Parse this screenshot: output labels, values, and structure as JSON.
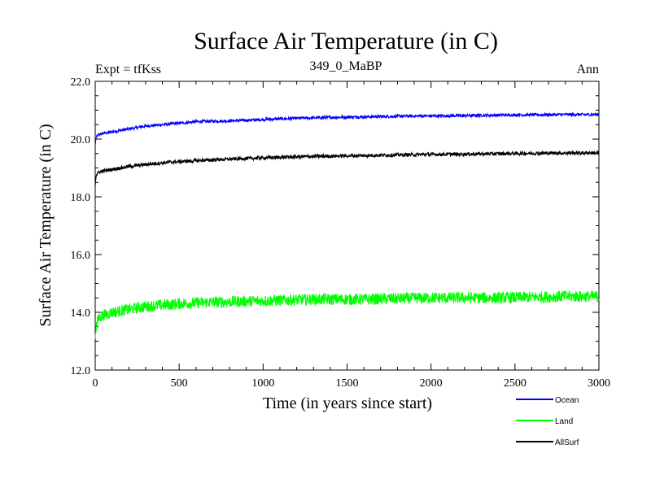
{
  "chart_data": {
    "type": "line",
    "title": "Surface Air Temperature (in C)",
    "subtitle_left": "Expt = tfKss",
    "subtitle_center": "349_0_MaBP",
    "subtitle_right": "Ann",
    "xlabel": "Time (in years since start)",
    "ylabel": "Surface Air Temperature (in C)",
    "xlim": [
      0,
      3000
    ],
    "ylim": [
      12.0,
      22.0
    ],
    "x_ticks": [
      0,
      500,
      1000,
      1500,
      2000,
      2500,
      3000
    ],
    "x_tick_labels": [
      "0",
      "500",
      "1000",
      "1500",
      "2000",
      "2500",
      "3000"
    ],
    "y_ticks": [
      12.0,
      14.0,
      16.0,
      18.0,
      20.0,
      22.0
    ],
    "y_tick_labels": [
      "12.0",
      "14.0",
      "16.0",
      "18.0",
      "20.0",
      "22.0"
    ],
    "legend_position": "bottom-right",
    "series": [
      {
        "name": "Ocean",
        "color": "#0000ff",
        "noise": 0.05,
        "x": [
          0,
          5,
          20,
          50,
          100,
          200,
          300,
          400,
          500,
          600,
          700,
          800,
          900,
          1000,
          1200,
          1400,
          1600,
          1800,
          2000,
          2200,
          2400,
          2600,
          2800,
          3000
        ],
        "values": [
          19.8,
          20.05,
          20.15,
          20.2,
          20.25,
          20.35,
          20.45,
          20.5,
          20.55,
          20.6,
          20.62,
          20.63,
          20.65,
          20.68,
          20.72,
          20.75,
          20.77,
          20.79,
          20.8,
          20.81,
          20.83,
          20.84,
          20.85,
          20.85
        ]
      },
      {
        "name": "Land",
        "color": "#00ff00",
        "noise": 0.2,
        "x": [
          0,
          5,
          20,
          50,
          100,
          200,
          300,
          500,
          700,
          1000,
          1300,
          1600,
          2000,
          2400,
          2800,
          3000
        ],
        "values": [
          13.1,
          13.5,
          13.8,
          13.9,
          14.0,
          14.1,
          14.2,
          14.3,
          14.35,
          14.4,
          14.45,
          14.45,
          14.5,
          14.5,
          14.55,
          14.55
        ]
      },
      {
        "name": "AllSurf",
        "color": "#000000",
        "noise": 0.06,
        "x": [
          0,
          5,
          20,
          50,
          100,
          200,
          300,
          400,
          500,
          700,
          900,
          1100,
          1300,
          1500,
          1800,
          2000,
          2200,
          2500,
          2800,
          3000
        ],
        "values": [
          18.4,
          18.75,
          18.85,
          18.9,
          18.95,
          19.05,
          19.12,
          19.18,
          19.22,
          19.28,
          19.33,
          19.37,
          19.4,
          19.42,
          19.45,
          19.47,
          19.48,
          19.5,
          19.52,
          19.52
        ]
      }
    ]
  }
}
